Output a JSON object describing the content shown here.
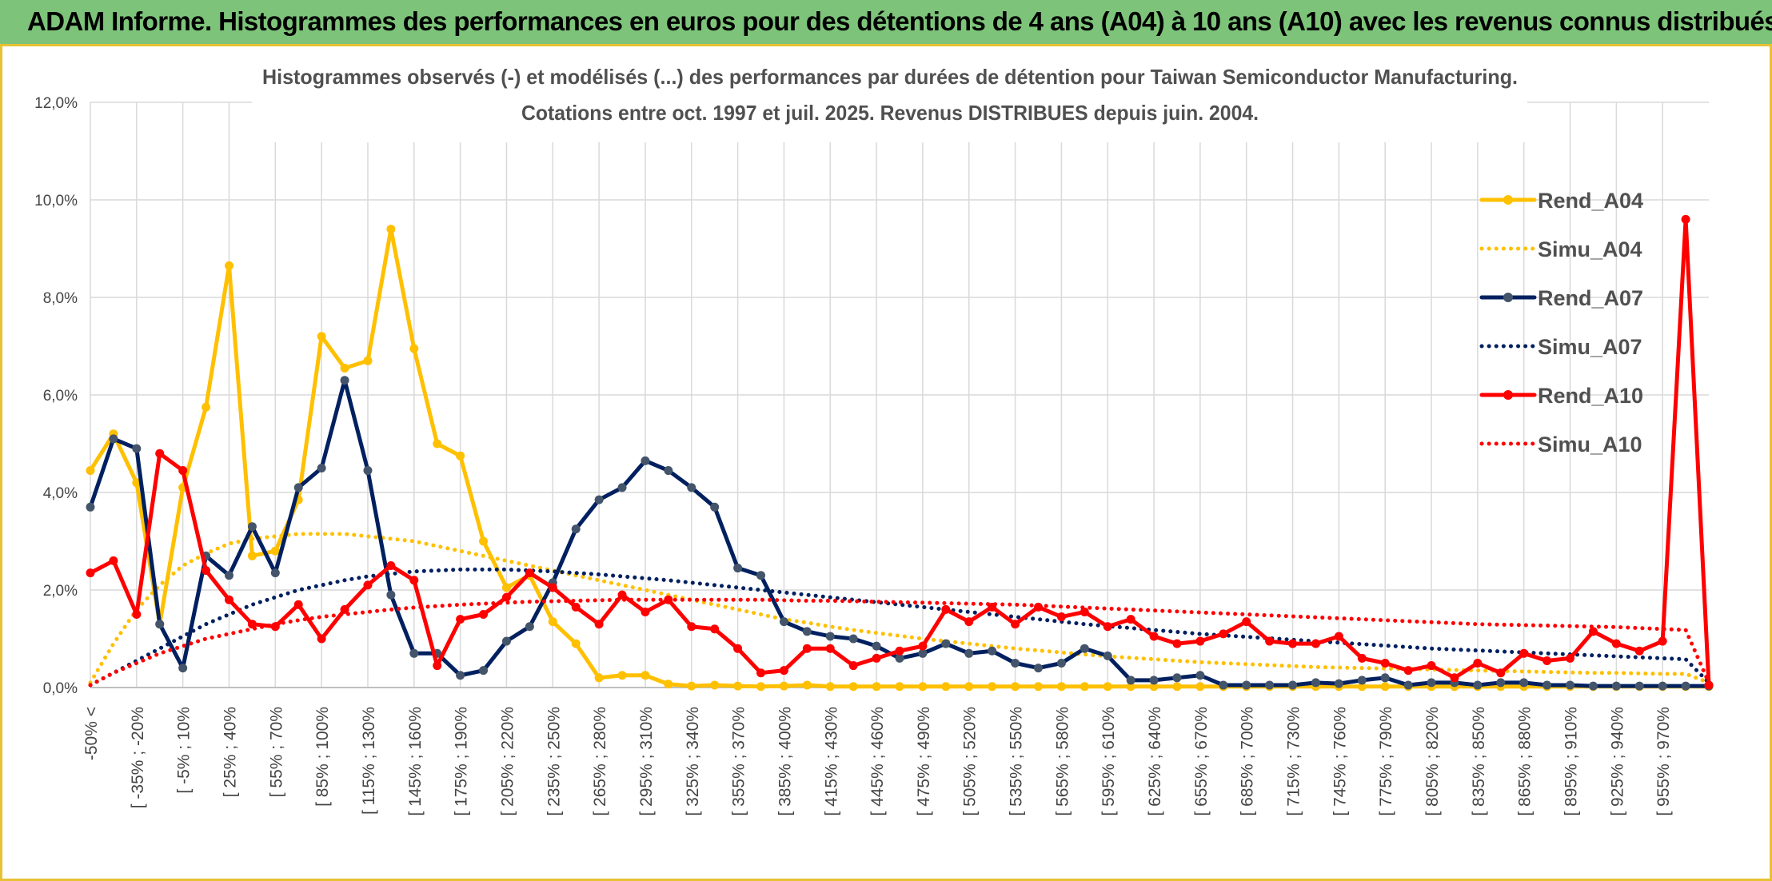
{
  "header": {
    "title": "ADAM Informe. Histogrammes des performances en euros pour des détentions de 4 ans (A04) à 10 ans (A10) avec les revenus connus distribués"
  },
  "chart_data": {
    "type": "line",
    "title": "Histogrammes observés (-) et modélisés (...) des performances par durées de détention pour Taiwan Semiconductor Manufacturing.",
    "subtitle": "Cotations entre oct. 1997 et juil. 2025. Revenus DISTRIBUES depuis juin. 2004.",
    "xlabel": "",
    "ylabel": "",
    "ylim": [
      0,
      12
    ],
    "yticks": [
      "0,0%",
      "2,0%",
      "4,0%",
      "6,0%",
      "8,0%",
      "10,0%",
      "12,0%"
    ],
    "grid": true,
    "legend_position": "right",
    "x_labels": [
      "-50% <",
      "[ -35% ; -20%",
      "[ -5% ; 10%",
      "[ 25% ; 40%",
      "[ 55% ; 70%",
      "[ 85% ; 100%",
      "[ 115% ; 130%",
      "[ 145% ; 160%",
      "[ 175% ; 190%",
      "[ 205% ; 220%",
      "[ 235% ; 250%",
      "[ 265% ; 280%",
      "[ 295% ; 310%",
      "[ 325% ; 340%",
      "[ 355% ; 370%",
      "[ 385% ; 400%",
      "[ 415% ; 430%",
      "[ 445% ; 460%",
      "[ 475% ; 490%",
      "[ 505% ; 520%",
      "[ 535% ; 550%",
      "[ 565% ; 580%",
      "[ 595% ; 610%",
      "[ 625% ; 640%",
      "[ 655% ; 670%",
      "[ 685% ; 700%",
      "[ 715% ; 730%",
      "[ 745% ; 760%",
      "[ 775% ; 790%",
      "[ 805% ; 820%",
      "[ 835% ; 850%",
      "[ 865% ; 880%",
      "[ 895% ; 910%",
      "[ 925% ; 940%",
      "[ 955% ; 970%"
    ],
    "series": [
      {
        "name": "Rend_A04",
        "color": "#ffc000",
        "style": "solid",
        "markers": true,
        "values": [
          4.45,
          5.2,
          4.2,
          1.3,
          4.1,
          5.75,
          8.65,
          2.7,
          2.8,
          3.85,
          7.2,
          6.55,
          6.7,
          9.4,
          6.95,
          5.0,
          4.75,
          3.0,
          2.05,
          2.3,
          1.35,
          0.9,
          0.2,
          0.25,
          0.25,
          0.07,
          0.03,
          0.05,
          0.03,
          0.02,
          0.03,
          0.05,
          0.02,
          0.02,
          0.02,
          0.02,
          0.02,
          0.02,
          0.02,
          0.02,
          0.02,
          0.02,
          0.02,
          0.02,
          0.02,
          0.02,
          0.02,
          0.02,
          0.02,
          0.02,
          0.02,
          0.02,
          0.02,
          0.02,
          0.02,
          0.02,
          0.02,
          0.02,
          0.02,
          0.02,
          0.02,
          0.02,
          0.02,
          0.02,
          0.02,
          0.02,
          0.02,
          0.02,
          0.02,
          0.02,
          0.02
        ]
      },
      {
        "name": "Simu_A04",
        "color": "#ffc000",
        "style": "dotted",
        "markers": false,
        "values": [
          0.1,
          0.9,
          1.6,
          2.1,
          2.5,
          2.75,
          2.95,
          3.05,
          3.1,
          3.15,
          3.15,
          3.15,
          3.1,
          3.05,
          3.0,
          2.9,
          2.8,
          2.7,
          2.6,
          2.5,
          2.4,
          2.3,
          2.2,
          2.1,
          2.0,
          1.9,
          1.8,
          1.7,
          1.6,
          1.5,
          1.4,
          1.33,
          1.25,
          1.18,
          1.12,
          1.06,
          1.0,
          0.95,
          0.9,
          0.85,
          0.8,
          0.76,
          0.72,
          0.68,
          0.64,
          0.61,
          0.58,
          0.55,
          0.52,
          0.5,
          0.48,
          0.46,
          0.44,
          0.42,
          0.41,
          0.4,
          0.39,
          0.38,
          0.37,
          0.36,
          0.35,
          0.34,
          0.33,
          0.32,
          0.31,
          0.3,
          0.3,
          0.29,
          0.28,
          0.28,
          0.1
        ]
      },
      {
        "name": "Rend_A07",
        "color": "#002060",
        "style": "solid",
        "markers": true,
        "values": [
          3.7,
          5.1,
          4.9,
          1.3,
          0.4,
          2.7,
          2.3,
          3.3,
          2.35,
          4.1,
          4.5,
          6.3,
          4.45,
          1.9,
          0.7,
          0.7,
          0.25,
          0.35,
          0.95,
          1.25,
          2.15,
          3.25,
          3.85,
          4.1,
          4.65,
          4.45,
          4.1,
          3.7,
          2.45,
          2.3,
          1.35,
          1.15,
          1.05,
          1.0,
          0.85,
          0.6,
          0.7,
          0.9,
          0.7,
          0.75,
          0.5,
          0.4,
          0.5,
          0.8,
          0.65,
          0.15,
          0.15,
          0.2,
          0.25,
          0.05,
          0.05,
          0.05,
          0.05,
          0.1,
          0.08,
          0.15,
          0.2,
          0.05,
          0.1,
          0.1,
          0.05,
          0.1,
          0.1,
          0.05,
          0.05,
          0.03,
          0.03,
          0.03,
          0.03,
          0.03,
          0.03
        ]
      },
      {
        "name": "Simu_A07",
        "color": "#002060",
        "style": "dotted",
        "markers": false,
        "values": [
          0.05,
          0.3,
          0.55,
          0.8,
          1.05,
          1.3,
          1.5,
          1.7,
          1.85,
          2.0,
          2.1,
          2.2,
          2.28,
          2.33,
          2.38,
          2.4,
          2.42,
          2.42,
          2.42,
          2.4,
          2.38,
          2.35,
          2.32,
          2.28,
          2.24,
          2.2,
          2.15,
          2.1,
          2.05,
          2.0,
          1.95,
          1.9,
          1.85,
          1.8,
          1.75,
          1.7,
          1.65,
          1.6,
          1.55,
          1.5,
          1.45,
          1.4,
          1.35,
          1.3,
          1.26,
          1.22,
          1.18,
          1.14,
          1.1,
          1.07,
          1.04,
          1.01,
          0.98,
          0.95,
          0.92,
          0.89,
          0.86,
          0.83,
          0.8,
          0.78,
          0.76,
          0.74,
          0.72,
          0.7,
          0.68,
          0.66,
          0.64,
          0.62,
          0.6,
          0.58,
          0.1
        ]
      },
      {
        "name": "Rend_A10",
        "color": "#ff0000",
        "style": "solid",
        "markers": true,
        "values": [
          2.35,
          2.6,
          1.5,
          4.8,
          4.45,
          2.4,
          1.8,
          1.3,
          1.25,
          1.7,
          1.0,
          1.6,
          2.1,
          2.5,
          2.2,
          0.45,
          1.4,
          1.5,
          1.85,
          2.35,
          2.05,
          1.65,
          1.3,
          1.9,
          1.55,
          1.8,
          1.25,
          1.2,
          0.8,
          0.3,
          0.35,
          0.8,
          0.8,
          0.45,
          0.6,
          0.75,
          0.85,
          1.6,
          1.35,
          1.65,
          1.3,
          1.65,
          1.45,
          1.55,
          1.25,
          1.4,
          1.05,
          0.9,
          0.95,
          1.1,
          1.35,
          0.95,
          0.9,
          0.9,
          1.05,
          0.6,
          0.5,
          0.35,
          0.45,
          0.2,
          0.5,
          0.3,
          0.7,
          0.55,
          0.6,
          1.15,
          0.9,
          0.75,
          0.95,
          9.6,
          0.05
        ]
      },
      {
        "name": "Simu_A10",
        "color": "#ff0000",
        "style": "dotted",
        "markers": false,
        "values": [
          0.05,
          0.3,
          0.5,
          0.7,
          0.85,
          1.0,
          1.1,
          1.2,
          1.3,
          1.38,
          1.45,
          1.5,
          1.55,
          1.6,
          1.64,
          1.67,
          1.7,
          1.72,
          1.74,
          1.76,
          1.77,
          1.78,
          1.79,
          1.8,
          1.8,
          1.8,
          1.8,
          1.8,
          1.8,
          1.8,
          1.79,
          1.78,
          1.78,
          1.77,
          1.76,
          1.75,
          1.74,
          1.73,
          1.72,
          1.71,
          1.7,
          1.68,
          1.66,
          1.64,
          1.62,
          1.6,
          1.58,
          1.56,
          1.54,
          1.52,
          1.5,
          1.48,
          1.46,
          1.44,
          1.42,
          1.4,
          1.38,
          1.36,
          1.34,
          1.32,
          1.3,
          1.29,
          1.28,
          1.27,
          1.26,
          1.25,
          1.24,
          1.22,
          1.2,
          1.18,
          0.1
        ]
      }
    ]
  }
}
